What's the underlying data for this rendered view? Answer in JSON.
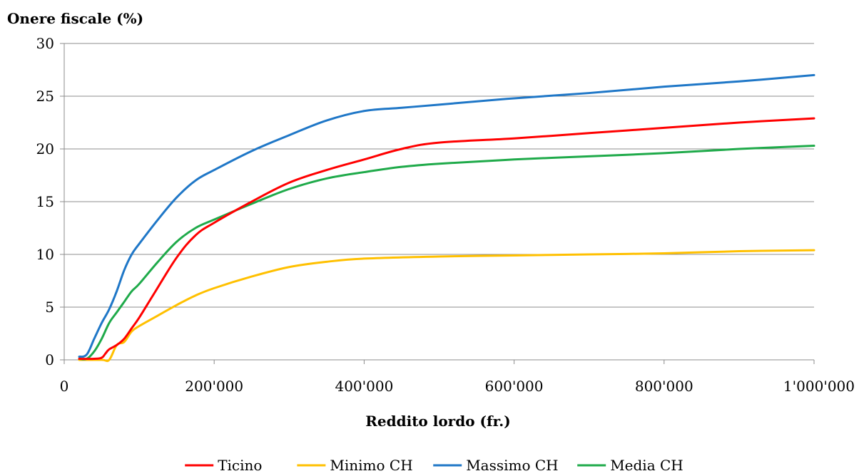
{
  "chart_data": {
    "type": "line",
    "title": "",
    "ylabel": "Onere fiscale (%)",
    "xlabel": "Reddito lordo (fr.)",
    "xlim": [
      0,
      1000000
    ],
    "ylim": [
      0,
      30
    ],
    "xticks": [
      0,
      200000,
      400000,
      600000,
      800000,
      1000000
    ],
    "xtick_labels": [
      "0",
      "200'000",
      "400'000",
      "600'000",
      "800'000",
      "1'000'000"
    ],
    "yticks": [
      0,
      5,
      10,
      15,
      20,
      25,
      30
    ],
    "ytick_labels": [
      "0",
      "5",
      "10",
      "15",
      "20",
      "25",
      "30"
    ],
    "grid": "horizontal",
    "legend_position": "bottom",
    "series": [
      {
        "name": "Ticino",
        "color": "#ff0000",
        "x": [
          20000,
          40000,
          50000,
          55000,
          60000,
          70000,
          80000,
          90000,
          100000,
          120000,
          150000,
          175000,
          200000,
          250000,
          300000,
          350000,
          400000,
          450000,
          500000,
          600000,
          700000,
          800000,
          900000,
          1000000
        ],
        "y": [
          0.1,
          0.1,
          0.2,
          0.6,
          1.0,
          1.4,
          2.0,
          3.0,
          4.0,
          6.3,
          9.7,
          11.8,
          13.0,
          15.0,
          16.8,
          18.0,
          19.0,
          20.0,
          20.6,
          21.0,
          21.5,
          22.0,
          22.5,
          22.9
        ]
      },
      {
        "name": "Minimo CH",
        "color": "#ffc000",
        "x": [
          20000,
          50000,
          60000,
          70000,
          80000,
          90000,
          100000,
          125000,
          150000,
          175000,
          200000,
          250000,
          300000,
          350000,
          400000,
          500000,
          600000,
          700000,
          800000,
          900000,
          1000000
        ],
        "y": [
          0.0,
          0.0,
          0.0,
          1.4,
          1.7,
          2.7,
          3.2,
          4.2,
          5.2,
          6.1,
          6.8,
          7.9,
          8.8,
          9.3,
          9.6,
          9.8,
          9.9,
          10.0,
          10.1,
          10.3,
          10.4
        ]
      },
      {
        "name": "Massimo CH",
        "color": "#1f77c7",
        "x": [
          20000,
          30000,
          40000,
          50000,
          60000,
          70000,
          80000,
          90000,
          100000,
          125000,
          150000,
          175000,
          200000,
          250000,
          300000,
          350000,
          400000,
          450000,
          500000,
          600000,
          700000,
          800000,
          900000,
          1000000
        ],
        "y": [
          0.3,
          0.5,
          2.0,
          3.5,
          4.8,
          6.5,
          8.5,
          10.0,
          11.0,
          13.3,
          15.4,
          17.0,
          18.0,
          19.8,
          21.3,
          22.7,
          23.6,
          23.9,
          24.2,
          24.8,
          25.3,
          25.9,
          26.4,
          27.0
        ]
      },
      {
        "name": "Media CH",
        "color": "#1faa4a",
        "x": [
          20000,
          30000,
          40000,
          50000,
          60000,
          70000,
          80000,
          90000,
          100000,
          125000,
          150000,
          175000,
          200000,
          250000,
          300000,
          350000,
          400000,
          450000,
          500000,
          600000,
          700000,
          800000,
          900000,
          1000000
        ],
        "y": [
          0.1,
          0.1,
          0.8,
          2.0,
          3.5,
          4.5,
          5.5,
          6.5,
          7.2,
          9.3,
          11.2,
          12.5,
          13.3,
          14.8,
          16.2,
          17.2,
          17.8,
          18.3,
          18.6,
          19.0,
          19.3,
          19.6,
          20.0,
          20.3
        ]
      }
    ]
  }
}
